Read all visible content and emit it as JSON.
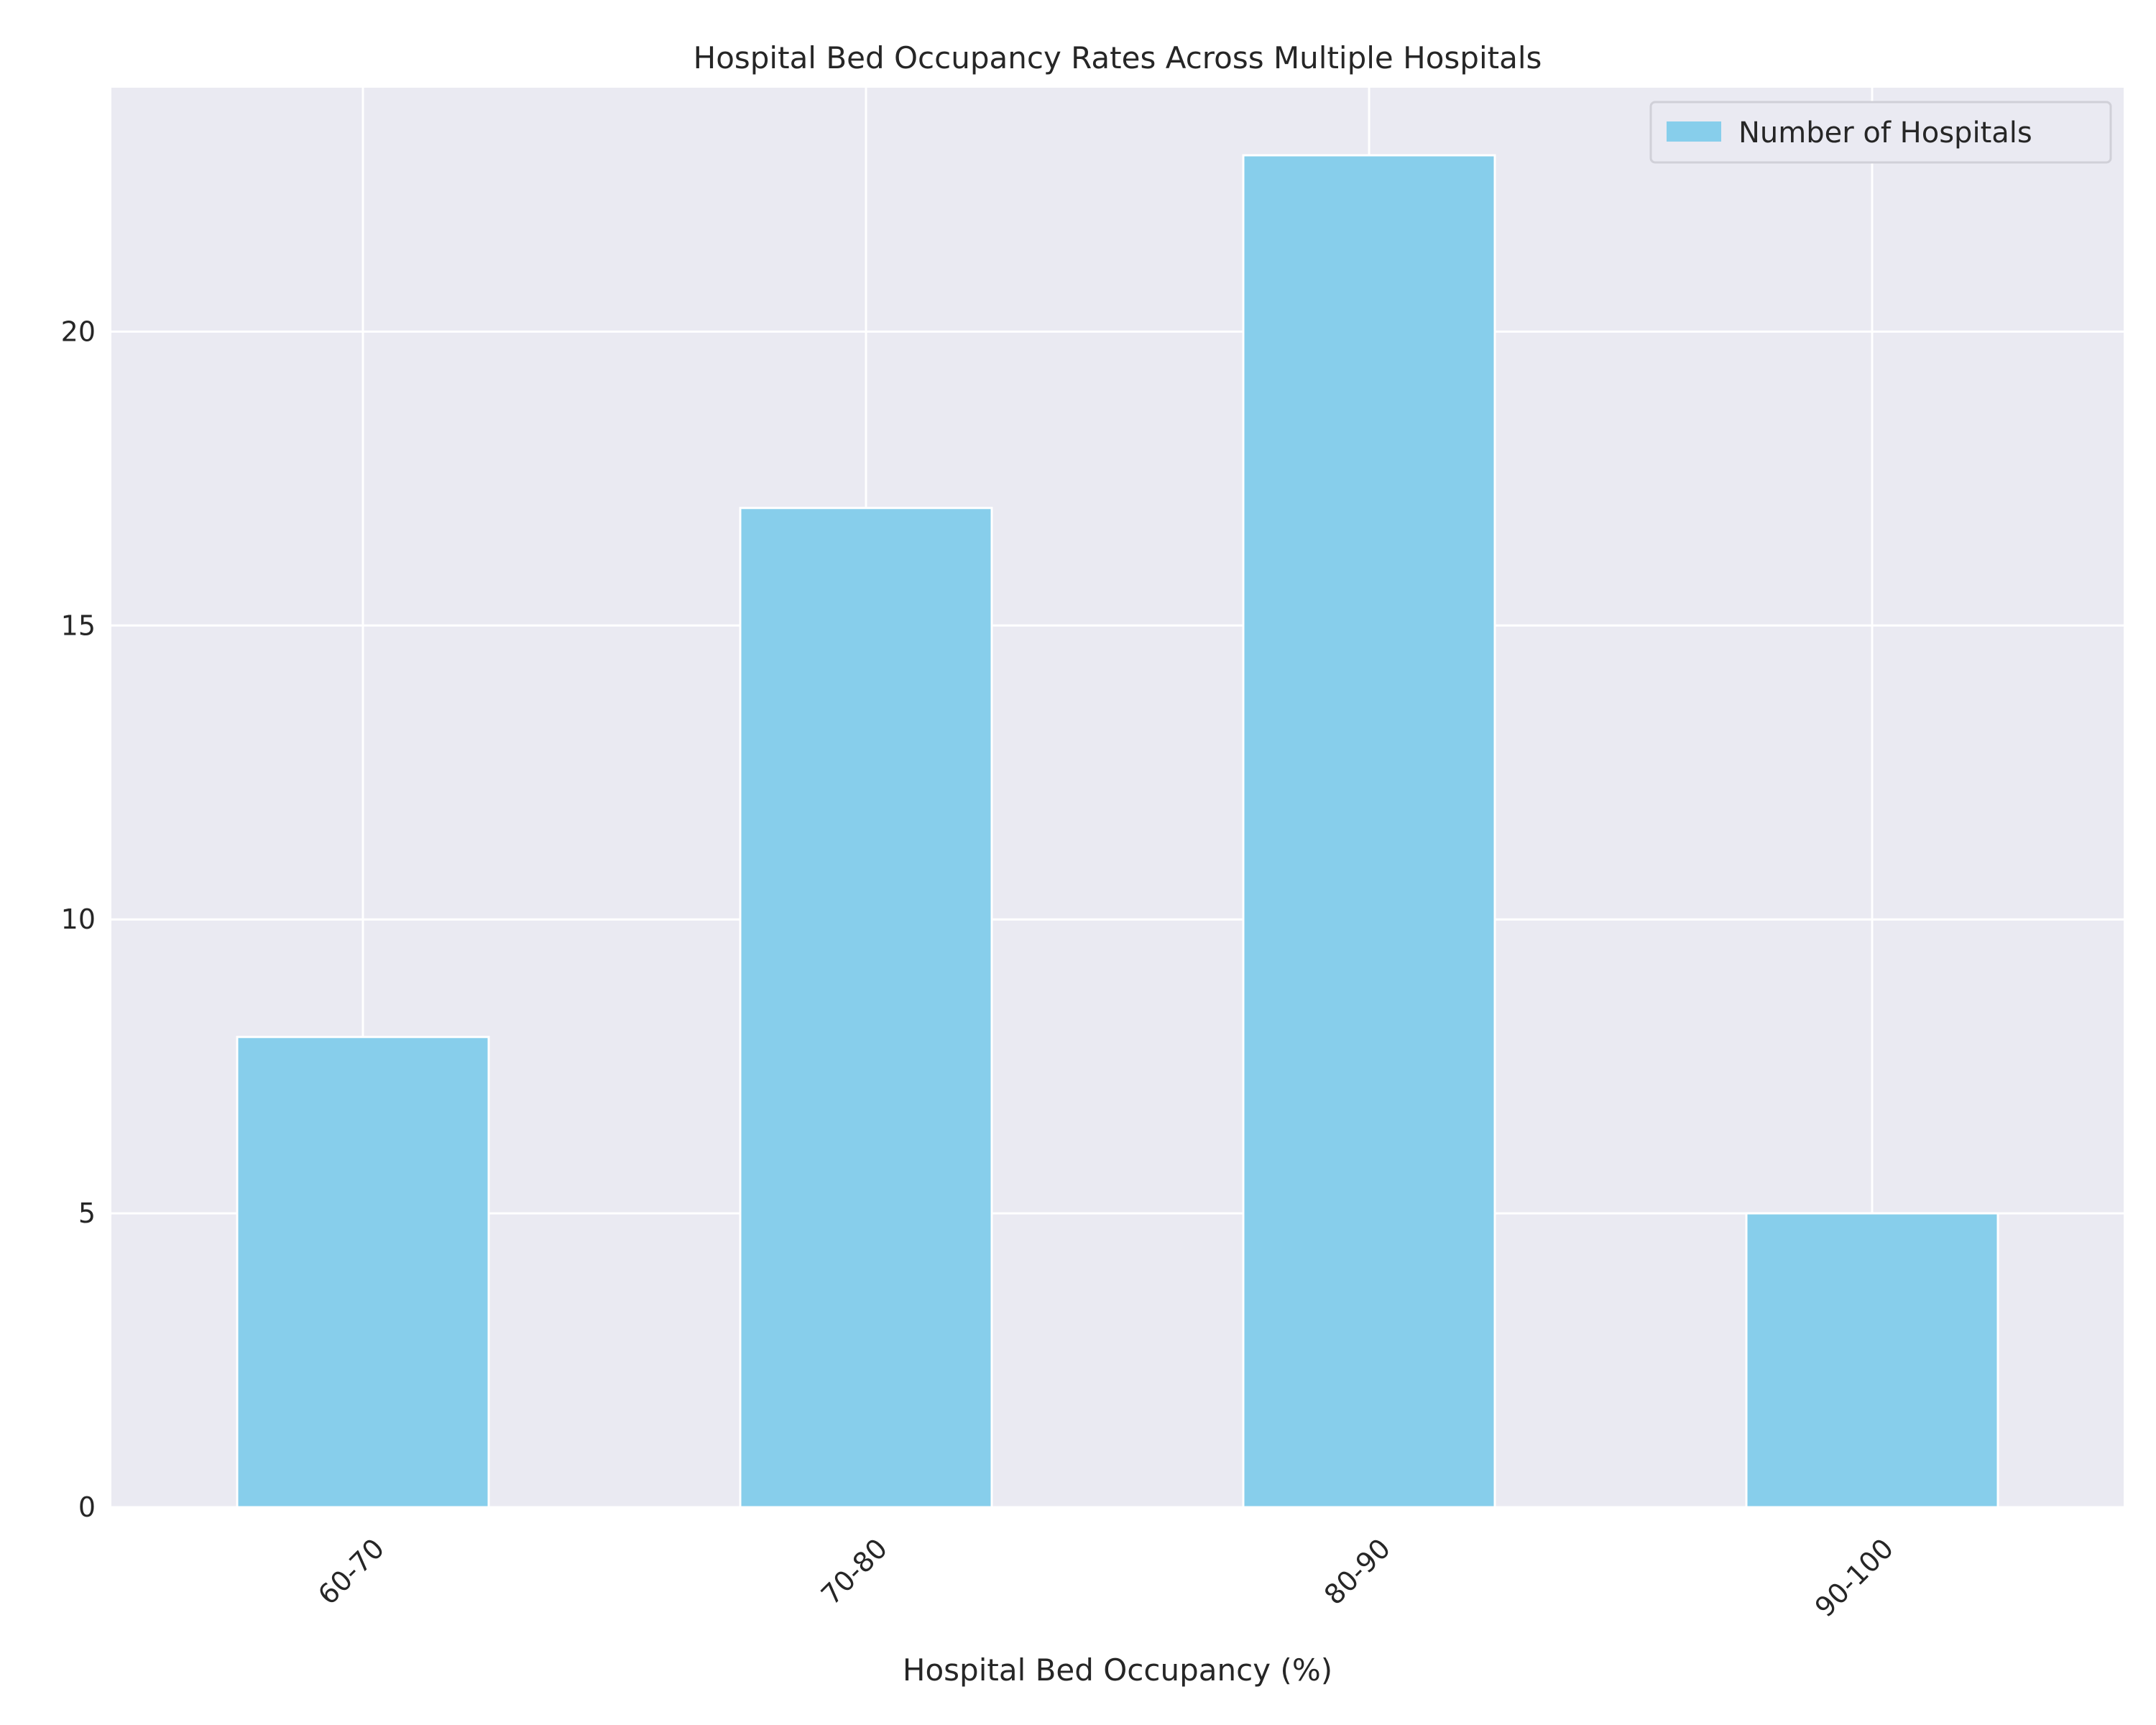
{
  "chart_data": {
    "type": "bar",
    "title": "Hospital Bed Occupancy Rates Across Multiple Hospitals",
    "xlabel": "Hospital Bed Occupancy (%)",
    "ylabel": "",
    "categories": [
      "60-70",
      "70-80",
      "80-90",
      "90-100"
    ],
    "series": [
      {
        "name": "Number of Hospitals",
        "values": [
          8,
          17,
          23,
          5
        ]
      }
    ],
    "ylim": [
      0,
      24.15
    ],
    "yticks": [
      0,
      5,
      10,
      15,
      20
    ],
    "grid": true,
    "legend_position": "top-right",
    "colors": {
      "bar": "#87CEEB",
      "plot_background": "#EAEAF2",
      "grid": "#FFFFFF",
      "text": "#262626"
    }
  }
}
